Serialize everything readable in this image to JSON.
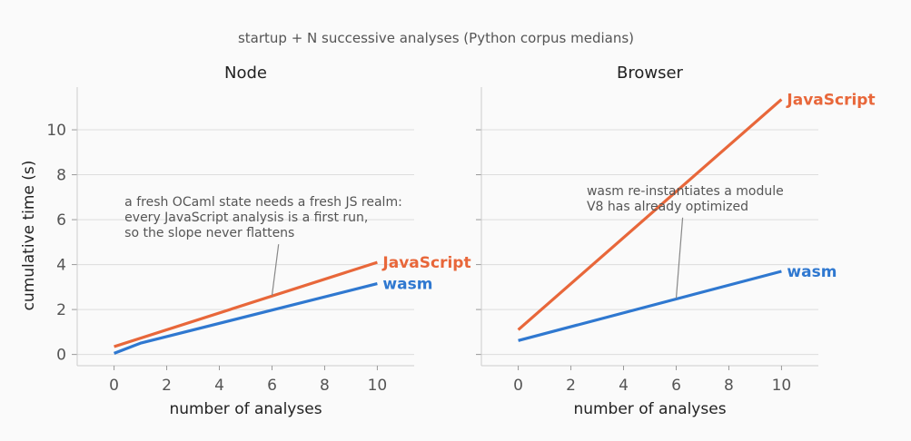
{
  "suptitle": "startup + N successive analyses (Python corpus medians)",
  "colors": {
    "JavaScript": "#e8673a",
    "wasm": "#2f78d0",
    "grid": "#dddddd",
    "axis": "#cccccc",
    "annot_line": "#888888"
  },
  "chart_data": [
    {
      "type": "line",
      "title": "Node",
      "xlabel": "number of analyses",
      "ylabel": "cumulative time (s)",
      "xlim": [
        -1.4,
        11.4
      ],
      "ylim": [
        -0.5,
        11.9
      ],
      "xticks": [
        0,
        2,
        4,
        6,
        8,
        10
      ],
      "yticks": [
        0,
        2,
        4,
        6,
        8,
        10
      ],
      "grid": "horizontal",
      "series": [
        {
          "name": "JavaScript",
          "x": [
            0,
            10
          ],
          "y": [
            0.35,
            4.1
          ]
        },
        {
          "name": "wasm",
          "x": [
            0,
            1,
            10
          ],
          "y": [
            0.05,
            0.5,
            3.15
          ]
        }
      ],
      "annotation": {
        "lines": [
          "a fresh OCaml state needs a fresh JS realm:",
          "every JavaScript analysis is a first run,",
          "so the slope never flattens"
        ],
        "text_at": [
          0.4,
          6.6
        ],
        "point_at": [
          6,
          2.62
        ]
      }
    },
    {
      "type": "line",
      "title": "Browser",
      "xlabel": "number of analyses",
      "ylabel": "",
      "xlim": [
        -1.4,
        11.4
      ],
      "ylim": [
        -0.5,
        11.9
      ],
      "xticks": [
        0,
        2,
        4,
        6,
        8,
        10
      ],
      "yticks": [
        0,
        2,
        4,
        6,
        8,
        10
      ],
      "grid": "horizontal",
      "series": [
        {
          "name": "JavaScript",
          "x": [
            0,
            10
          ],
          "y": [
            1.1,
            11.35
          ]
        },
        {
          "name": "wasm",
          "x": [
            0,
            10
          ],
          "y": [
            0.62,
            3.7
          ]
        }
      ],
      "annotation": {
        "lines": [
          "wasm re-instantiates a module",
          "V8 has already optimized"
        ],
        "text_at": [
          2.6,
          7.1
        ],
        "point_at": [
          6,
          2.5
        ]
      }
    }
  ]
}
